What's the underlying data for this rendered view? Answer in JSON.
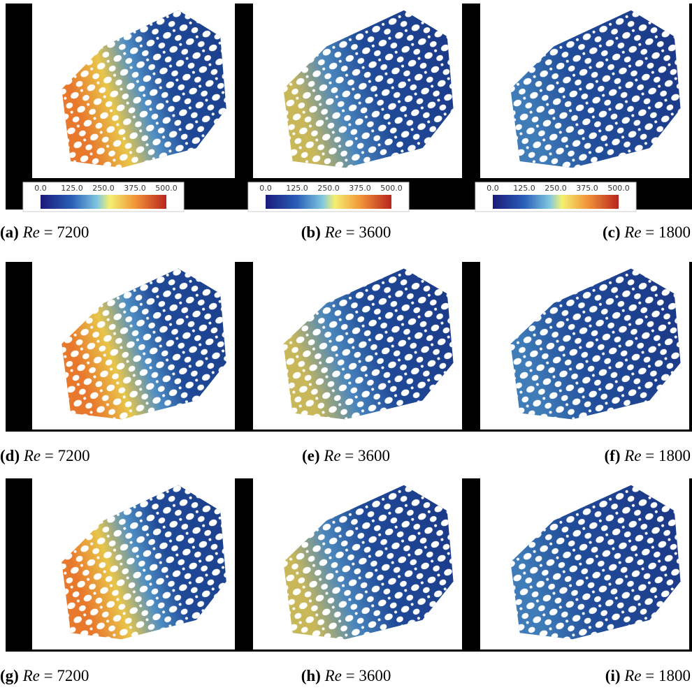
{
  "panels": [
    {
      "label": "(a)",
      "variable": "Re",
      "relation": "=",
      "value": 7200,
      "colorbar": {
        "ticks": [
          "0.0",
          "125.0",
          "250.0",
          "375.0",
          "500.0"
        ]
      }
    },
    {
      "label": "(b)",
      "variable": "Re",
      "relation": "=",
      "value": 3600,
      "colorbar": {
        "ticks": [
          "0.0",
          "125.0",
          "250.0",
          "375.0",
          "500.0"
        ]
      }
    },
    {
      "label": "(c)",
      "variable": "Re",
      "relation": "=",
      "value": 1800,
      "colorbar": {
        "ticks": [
          "0.0",
          "125.0",
          "250.0",
          "375.0",
          "500.0"
        ]
      }
    },
    {
      "label": "(d)",
      "variable": "Re",
      "relation": "=",
      "value": 7200
    },
    {
      "label": "(e)",
      "variable": "Re",
      "relation": "=",
      "value": 3600
    },
    {
      "label": "(f)",
      "variable": "Re",
      "relation": "=",
      "value": 1800
    },
    {
      "label": "(g)",
      "variable": "Re",
      "relation": "=",
      "value": 7200
    },
    {
      "label": "(h)",
      "variable": "Re",
      "relation": "=",
      "value": 3600
    },
    {
      "label": "(i)",
      "variable": "Re",
      "relation": "=",
      "value": 1800
    }
  ]
}
